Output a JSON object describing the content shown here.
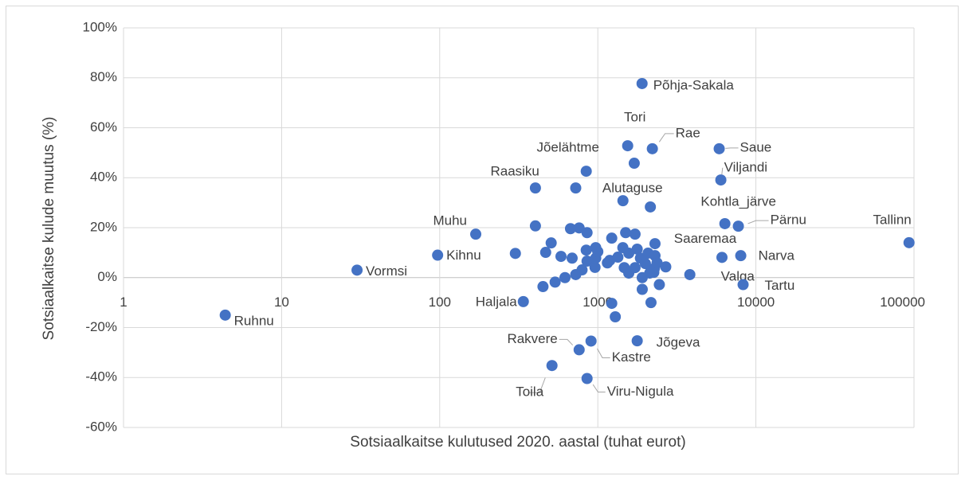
{
  "chart_data": {
    "type": "scatter",
    "x_label": "Sotsiaalkaitse kulutused 2020. aastal (tuhat eurot)",
    "y_label": "Sotsiaalkaitse kulude muutus (%)",
    "xscale": "log",
    "xlim": [
      1,
      100000
    ],
    "xticks": [
      1,
      10,
      100,
      1000,
      10000,
      100000
    ],
    "ylim": [
      -60,
      100
    ],
    "yticks": [
      {
        "value": -60,
        "label": "-60%"
      },
      {
        "value": -40,
        "label": "-40%"
      },
      {
        "value": -20,
        "label": "-20%"
      },
      {
        "value": 0,
        "label": "0%"
      },
      {
        "value": 20,
        "label": "20%"
      },
      {
        "value": 40,
        "label": "40%"
      },
      {
        "value": 60,
        "label": "60%"
      },
      {
        "value": 80,
        "label": "80%"
      },
      {
        "value": 100,
        "label": "100%"
      }
    ],
    "grid": true,
    "color": "#4472c4",
    "x": [
      4.4,
      30,
      97,
      169,
      338,
      403,
      845,
      1545,
      2213,
      1905,
      5860,
      6000,
      1442,
      6364,
      7744,
      93000,
      8020,
      6100,
      3820,
      8300,
      762,
      906,
      1775,
      513,
      855,
      403,
      301,
      468,
      507,
      585,
      450,
      537,
      620,
      672,
      688,
      762,
      725,
      795,
      855,
      845,
      855,
      960,
      970,
      970,
      1000,
      725,
      1150,
      1190,
      1225,
      1225,
      1290,
      1340,
      1440,
      1500,
      1570,
      1720,
      1470,
      1570,
      1720,
      1775,
      1860,
      1910,
      1910,
      2000,
      2080,
      2150,
      2130,
      2170,
      2260,
      2280,
      2300,
      2300,
      2370,
      2450,
      2690,
      1700
    ],
    "values": [
      -15,
      3,
      9,
      17.4,
      -9.6,
      35.9,
      42.6,
      52.8,
      51.6,
      77.7,
      51.6,
      39.1,
      30.8,
      21.6,
      20.6,
      14,
      8.8,
      8.1,
      1.2,
      -2.8,
      -28.9,
      -25.4,
      -25.3,
      -35.2,
      -40.4,
      20.7,
      9.7,
      10.1,
      13.9,
      8.5,
      -3.6,
      -1.8,
      0,
      19.6,
      7.8,
      19.9,
      1.2,
      3.1,
      18,
      11,
      6.6,
      4.1,
      7.8,
      12,
      10.4,
      35.9,
      5.9,
      6.9,
      15.8,
      -10.3,
      -15.7,
      8.2,
      12,
      18,
      9.8,
      17.4,
      4,
      1.8,
      4,
      11.4,
      7.8,
      0,
      -4.7,
      5.6,
      9.8,
      28.3,
      1.8,
      -10,
      2.1,
      3.7,
      13.6,
      8.8,
      5.9,
      -2.8,
      4.3,
      45.8
    ],
    "point_labels": [
      "Ruhnu",
      "Vormsi",
      "Kihnu",
      "Muhu",
      "Haljala",
      "Raasiku",
      "Jõelähtme",
      "Tori",
      "Rae",
      "Põhja-Sakala",
      "Saue",
      "Viljandi",
      "Alutaguse",
      "Kohtla_järve",
      "Pärnu",
      "Tallinn",
      "Narva",
      "Saaremaa",
      "Valga",
      "Tartu",
      "Rakvere",
      "Kastre",
      "Jõgeva",
      "Toila",
      "Viru-Nigula",
      null,
      null,
      null,
      null,
      null,
      null,
      null,
      null,
      null,
      null,
      null,
      null,
      null,
      null,
      null,
      null,
      null,
      null,
      null,
      null,
      null,
      null,
      null,
      null,
      null,
      null,
      null,
      null,
      null,
      null,
      null,
      null,
      null,
      null,
      null,
      null,
      null,
      null,
      null,
      null,
      null,
      null,
      null,
      null,
      null,
      null,
      null,
      null,
      null,
      null,
      null
    ]
  }
}
